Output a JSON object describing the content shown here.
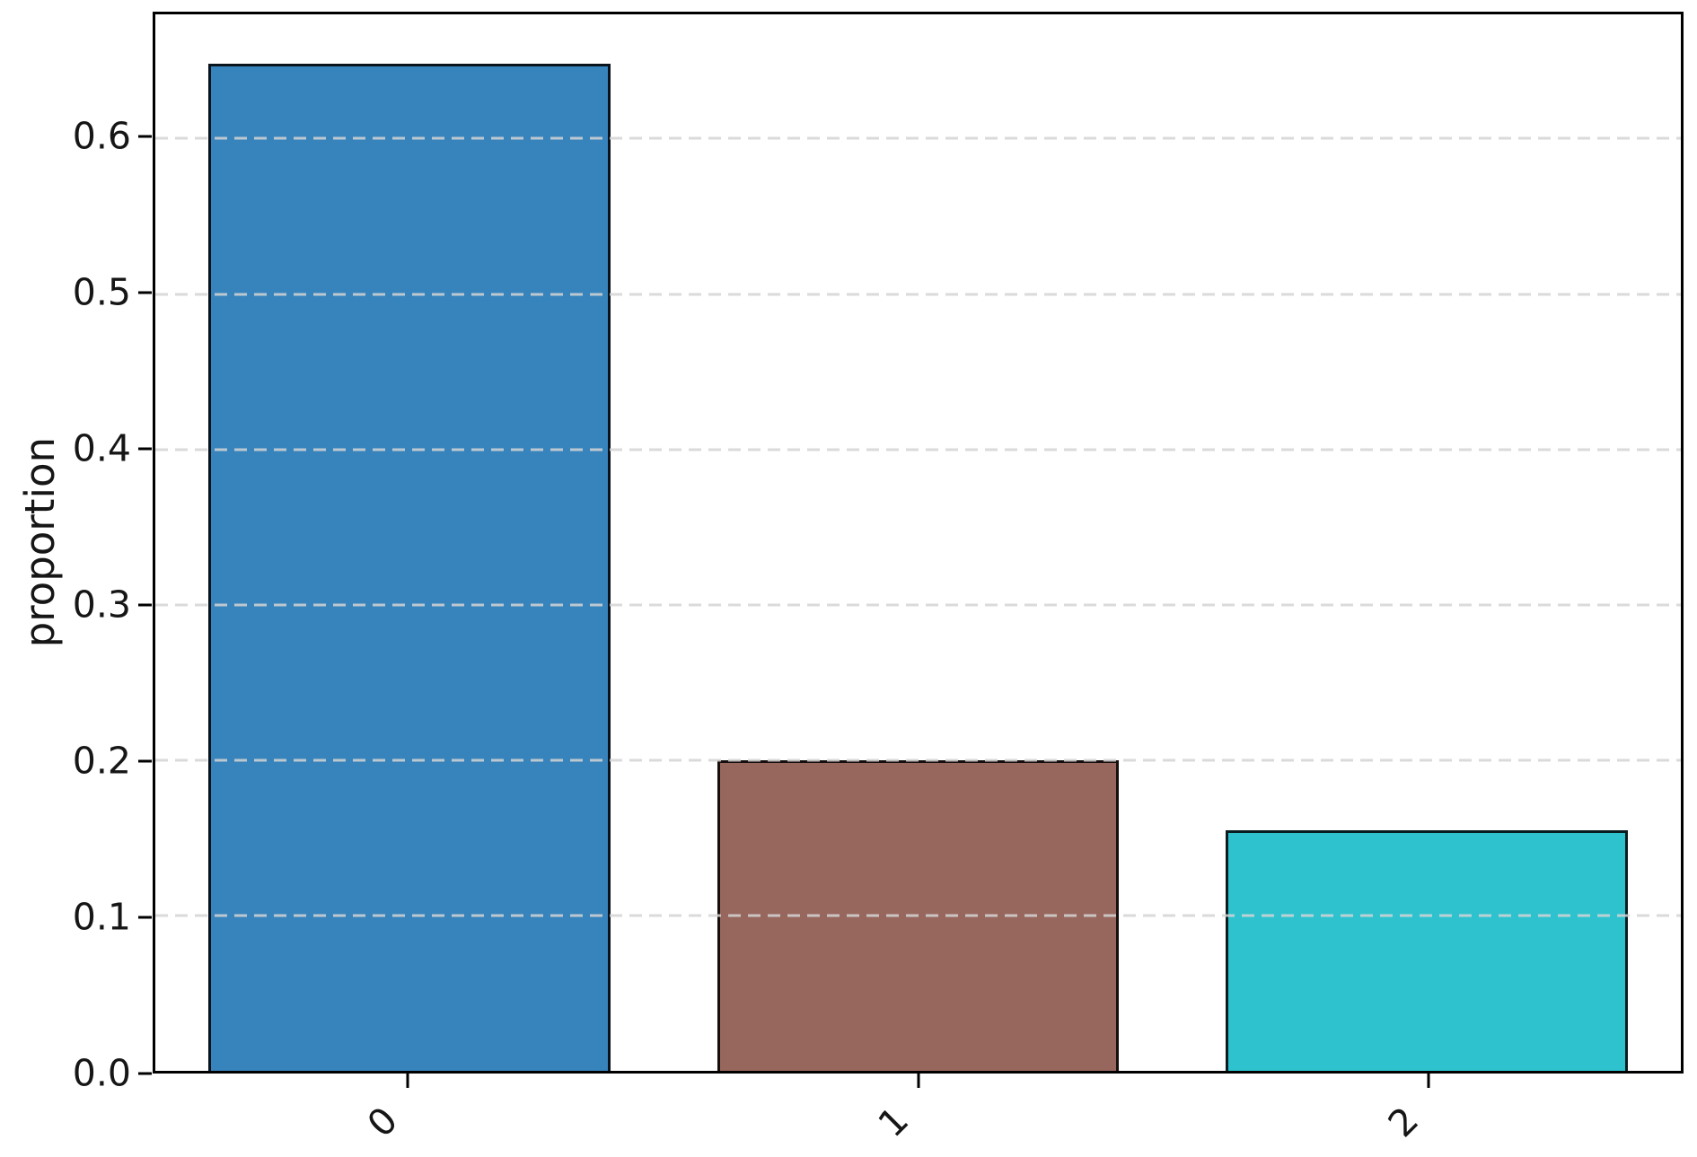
{
  "chart_data": {
    "type": "bar",
    "title": "",
    "xlabel": "",
    "ylabel": "proportion",
    "categories": [
      "0",
      "1",
      "2"
    ],
    "values": [
      0.648,
      0.2,
      0.155
    ],
    "series": [
      {
        "name": "proportion",
        "values": [
          0.648,
          0.2,
          0.155
        ]
      }
    ],
    "bar_colors": [
      "#3783bc",
      "#97675d",
      "#2ec2cf"
    ],
    "bar_edge_color": "rgba(0,0,0,0.85)",
    "yticks": [
      0.0,
      0.1,
      0.2,
      0.3,
      0.4,
      0.5,
      0.6
    ],
    "ytick_labels": [
      "0.0",
      "0.1",
      "0.2",
      "0.3",
      "0.4",
      "0.5",
      "0.6"
    ],
    "ylim": [
      0,
      0.68
    ],
    "xtick_rotation_deg": 45,
    "bar_width_fraction": 0.79,
    "grid": {
      "visible": true,
      "axis": "y",
      "style": "dashed",
      "color": "rgba(212,212,212,0.85)",
      "drawn_above_bars": true
    },
    "legend": "none",
    "background_color": "#ffffff",
    "spine_color": "#000000"
  }
}
